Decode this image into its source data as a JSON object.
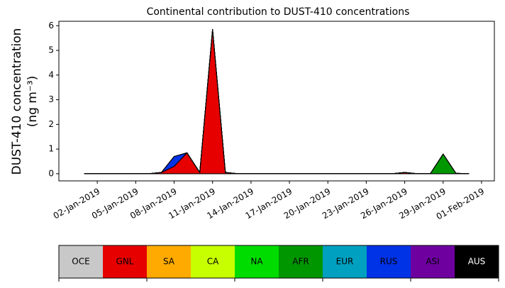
{
  "chart_data": {
    "type": "stacked_area",
    "title": "Continental contribution to DUST-410 concentrations",
    "ylabel": [
      "DUST-410 concentration",
      "(ng m⁻³)"
    ],
    "x": [
      "2019-01-01",
      "2019-01-02",
      "2019-01-03",
      "2019-01-04",
      "2019-01-05",
      "2019-01-06",
      "2019-01-07",
      "2019-01-08",
      "2019-01-09",
      "2019-01-10",
      "2019-01-11",
      "2019-01-12",
      "2019-01-13",
      "2019-01-14",
      "2019-01-15",
      "2019-01-16",
      "2019-01-17",
      "2019-01-18",
      "2019-01-19",
      "2019-01-20",
      "2019-01-21",
      "2019-01-22",
      "2019-01-23",
      "2019-01-24",
      "2019-01-25",
      "2019-01-26",
      "2019-01-27",
      "2019-01-28",
      "2019-01-29",
      "2019-01-30",
      "2019-01-31"
    ],
    "xlim": [
      "2018-12-30",
      "2019-02-02"
    ],
    "xticks": [
      {
        "value": "2019-01-02",
        "label": "02-Jan-2019"
      },
      {
        "value": "2019-01-05",
        "label": "05-Jan-2019"
      },
      {
        "value": "2019-01-08",
        "label": "08-Jan-2019"
      },
      {
        "value": "2019-01-11",
        "label": "11-Jan-2019"
      },
      {
        "value": "2019-01-14",
        "label": "14-Jan-2019"
      },
      {
        "value": "2019-01-17",
        "label": "17-Jan-2019"
      },
      {
        "value": "2019-01-20",
        "label": "20-Jan-2019"
      },
      {
        "value": "2019-01-23",
        "label": "23-Jan-2019"
      },
      {
        "value": "2019-01-26",
        "label": "26-Jan-2019"
      },
      {
        "value": "2019-01-29",
        "label": "29-Jan-2019"
      },
      {
        "value": "2019-02-01",
        "label": "01-Feb-2019"
      }
    ],
    "ylim": [
      -0.29,
      6.18
    ],
    "yticks": [
      0,
      1,
      2,
      3,
      4,
      5,
      6
    ],
    "series": [
      {
        "name": "OCE",
        "color": "#c8c8c8",
        "values": [
          0,
          0,
          0,
          0,
          0,
          0,
          0,
          0,
          0,
          0,
          0,
          0,
          0,
          0,
          0,
          0,
          0,
          0,
          0,
          0,
          0,
          0,
          0,
          0,
          0,
          0,
          0,
          0,
          0,
          0,
          0
        ]
      },
      {
        "name": "GNL",
        "color": "#e60000",
        "values": [
          0,
          0,
          0,
          0,
          0,
          0,
          0.05,
          0.3,
          0.85,
          0.05,
          5.85,
          0.05,
          0,
          0,
          0,
          0,
          0,
          0,
          0,
          0,
          0,
          0,
          0,
          0,
          0,
          0.05,
          0,
          0,
          0,
          0,
          0
        ]
      },
      {
        "name": "SA",
        "color": "#ffaa00",
        "values": [
          0,
          0,
          0,
          0,
          0,
          0,
          0,
          0,
          0,
          0,
          0,
          0,
          0,
          0,
          0,
          0,
          0,
          0,
          0,
          0,
          0,
          0,
          0,
          0,
          0,
          0,
          0,
          0,
          0,
          0,
          0
        ]
      },
      {
        "name": "CA",
        "color": "#c8ff00",
        "values": [
          0,
          0,
          0,
          0,
          0,
          0,
          0,
          0,
          0,
          0,
          0,
          0,
          0,
          0,
          0,
          0,
          0,
          0,
          0,
          0,
          0,
          0,
          0,
          0,
          0,
          0,
          0,
          0,
          0,
          0,
          0
        ]
      },
      {
        "name": "NA",
        "color": "#00dc00",
        "values": [
          0,
          0,
          0,
          0,
          0,
          0,
          0,
          0,
          0,
          0,
          0,
          0,
          0,
          0,
          0,
          0,
          0,
          0,
          0,
          0,
          0,
          0,
          0,
          0,
          0,
          0,
          0,
          0,
          0,
          0,
          0
        ]
      },
      {
        "name": "AFR",
        "color": "#009600",
        "values": [
          0,
          0,
          0,
          0,
          0,
          0,
          0,
          0,
          0,
          0,
          0,
          0,
          0,
          0,
          0,
          0,
          0,
          0,
          0,
          0,
          0,
          0,
          0,
          0,
          0,
          0,
          0,
          0,
          0.8,
          0.02,
          0
        ]
      },
      {
        "name": "EUR",
        "color": "#00a0c0",
        "values": [
          0,
          0,
          0,
          0,
          0,
          0,
          0,
          0,
          0,
          0,
          0,
          0,
          0,
          0,
          0,
          0,
          0,
          0,
          0,
          0,
          0,
          0,
          0,
          0,
          0,
          0,
          0,
          0,
          0,
          0,
          0
        ]
      },
      {
        "name": "RUS",
        "color": "#0032e6",
        "values": [
          0,
          0,
          0,
          0,
          0,
          0,
          0,
          0.4,
          0,
          0,
          0,
          0,
          0,
          0,
          0,
          0,
          0,
          0,
          0,
          0,
          0,
          0,
          0,
          0,
          0,
          0,
          0,
          0,
          0,
          0,
          0
        ]
      },
      {
        "name": "ASI",
        "color": "#6e00a0",
        "values": [
          0,
          0,
          0,
          0,
          0,
          0,
          0,
          0,
          0,
          0,
          0,
          0,
          0,
          0,
          0,
          0,
          0,
          0,
          0,
          0,
          0,
          0,
          0,
          0,
          0,
          0,
          0,
          0,
          0,
          0,
          0
        ]
      },
      {
        "name": "AUS",
        "color": "#000000",
        "values": [
          0,
          0,
          0,
          0,
          0,
          0,
          0,
          0,
          0,
          0,
          0,
          0,
          0,
          0,
          0,
          0,
          0,
          0,
          0,
          0,
          0,
          0,
          0,
          0,
          0,
          0,
          0,
          0,
          0,
          0,
          0
        ]
      }
    ]
  }
}
